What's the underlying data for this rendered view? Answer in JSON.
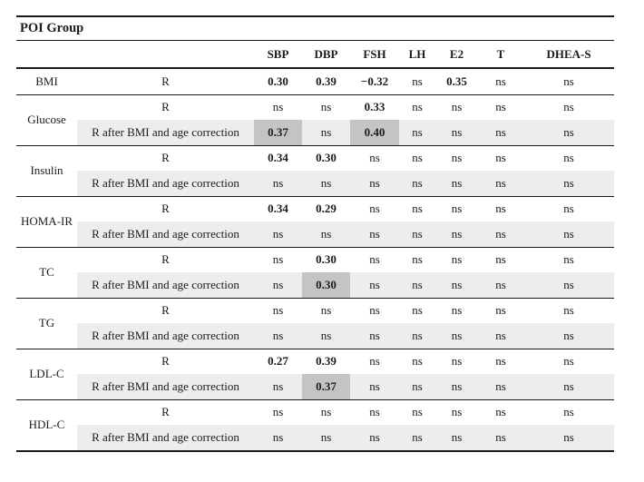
{
  "title": "POI Group",
  "table": {
    "columns": [
      "SBP",
      "DBP",
      "FSH",
      "LH",
      "E2",
      "T",
      "DHEA-S"
    ],
    "row_labels": {
      "r": "R",
      "corrected": "R after BMI and age correction"
    },
    "groups": [
      {
        "param": "BMI",
        "rows": [
          {
            "label": "R",
            "shaded": false,
            "cells": [
              {
                "v": "0.30",
                "bold": true
              },
              {
                "v": "0.39",
                "bold": true
              },
              {
                "v": "−0.32",
                "bold": true
              },
              {
                "v": "ns"
              },
              {
                "v": "0.35",
                "bold": true
              },
              {
                "v": "ns"
              },
              {
                "v": "ns"
              }
            ]
          }
        ]
      },
      {
        "param": "Glucose",
        "rows": [
          {
            "label": "R",
            "shaded": false,
            "cells": [
              {
                "v": "ns"
              },
              {
                "v": "ns"
              },
              {
                "v": "0.33",
                "bold": true
              },
              {
                "v": "ns"
              },
              {
                "v": "ns"
              },
              {
                "v": "ns"
              },
              {
                "v": "ns"
              }
            ]
          },
          {
            "label": "R after BMI and age correction",
            "shaded": true,
            "cells": [
              {
                "v": "0.37",
                "bold": true,
                "highlight": true
              },
              {
                "v": "ns"
              },
              {
                "v": "0.40",
                "bold": true,
                "highlight": true
              },
              {
                "v": "ns"
              },
              {
                "v": "ns"
              },
              {
                "v": "ns"
              },
              {
                "v": "ns"
              }
            ]
          }
        ]
      },
      {
        "param": "Insulin",
        "rows": [
          {
            "label": "R",
            "shaded": false,
            "cells": [
              {
                "v": "0.34",
                "bold": true
              },
              {
                "v": "0.30",
                "bold": true
              },
              {
                "v": "ns"
              },
              {
                "v": "ns"
              },
              {
                "v": "ns"
              },
              {
                "v": "ns"
              },
              {
                "v": "ns"
              }
            ]
          },
          {
            "label": "R after BMI and age correction",
            "shaded": true,
            "cells": [
              {
                "v": "ns"
              },
              {
                "v": "ns"
              },
              {
                "v": "ns"
              },
              {
                "v": "ns"
              },
              {
                "v": "ns"
              },
              {
                "v": "ns"
              },
              {
                "v": "ns"
              }
            ]
          }
        ]
      },
      {
        "param": "HOMA-IR",
        "rows": [
          {
            "label": "R",
            "shaded": false,
            "cells": [
              {
                "v": "0.34",
                "bold": true
              },
              {
                "v": "0.29",
                "bold": true
              },
              {
                "v": "ns"
              },
              {
                "v": "ns"
              },
              {
                "v": "ns"
              },
              {
                "v": "ns"
              },
              {
                "v": "ns"
              }
            ]
          },
          {
            "label": "R after BMI and age correction",
            "shaded": true,
            "cells": [
              {
                "v": "ns"
              },
              {
                "v": "ns"
              },
              {
                "v": "ns"
              },
              {
                "v": "ns"
              },
              {
                "v": "ns"
              },
              {
                "v": "ns"
              },
              {
                "v": "ns"
              }
            ]
          }
        ]
      },
      {
        "param": "TC",
        "rows": [
          {
            "label": "R",
            "shaded": false,
            "cells": [
              {
                "v": "ns"
              },
              {
                "v": "0.30",
                "bold": true
              },
              {
                "v": "ns"
              },
              {
                "v": "ns"
              },
              {
                "v": "ns"
              },
              {
                "v": "ns"
              },
              {
                "v": "ns"
              }
            ]
          },
          {
            "label": "R after BMI and age correction",
            "shaded": true,
            "cells": [
              {
                "v": "ns"
              },
              {
                "v": "0.30",
                "bold": true,
                "highlight": true
              },
              {
                "v": "ns"
              },
              {
                "v": "ns"
              },
              {
                "v": "ns"
              },
              {
                "v": "ns"
              },
              {
                "v": "ns"
              }
            ]
          }
        ]
      },
      {
        "param": "TG",
        "rows": [
          {
            "label": "R",
            "shaded": false,
            "cells": [
              {
                "v": "ns"
              },
              {
                "v": "ns"
              },
              {
                "v": "ns"
              },
              {
                "v": "ns"
              },
              {
                "v": "ns"
              },
              {
                "v": "ns"
              },
              {
                "v": "ns"
              }
            ]
          },
          {
            "label": "R after BMI and age correction",
            "shaded": true,
            "cells": [
              {
                "v": "ns"
              },
              {
                "v": "ns"
              },
              {
                "v": "ns"
              },
              {
                "v": "ns"
              },
              {
                "v": "ns"
              },
              {
                "v": "ns"
              },
              {
                "v": "ns"
              }
            ]
          }
        ]
      },
      {
        "param": "LDL-C",
        "rows": [
          {
            "label": "R",
            "shaded": false,
            "cells": [
              {
                "v": "0.27",
                "bold": true
              },
              {
                "v": "0.39",
                "bold": true
              },
              {
                "v": "ns"
              },
              {
                "v": "ns"
              },
              {
                "v": "ns"
              },
              {
                "v": "ns"
              },
              {
                "v": "ns"
              }
            ]
          },
          {
            "label": "R after BMI and age correction",
            "shaded": true,
            "cells": [
              {
                "v": "ns"
              },
              {
                "v": "0.37",
                "bold": true,
                "highlight": true
              },
              {
                "v": "ns"
              },
              {
                "v": "ns"
              },
              {
                "v": "ns"
              },
              {
                "v": "ns"
              },
              {
                "v": "ns"
              }
            ]
          }
        ]
      },
      {
        "param": "HDL-C",
        "rows": [
          {
            "label": "R",
            "shaded": false,
            "cells": [
              {
                "v": "ns"
              },
              {
                "v": "ns"
              },
              {
                "v": "ns"
              },
              {
                "v": "ns"
              },
              {
                "v": "ns"
              },
              {
                "v": "ns"
              },
              {
                "v": "ns"
              }
            ]
          },
          {
            "label": "R after BMI and age correction",
            "shaded": true,
            "cells": [
              {
                "v": "ns"
              },
              {
                "v": "ns"
              },
              {
                "v": "ns"
              },
              {
                "v": "ns"
              },
              {
                "v": "ns"
              },
              {
                "v": "ns"
              },
              {
                "v": "ns"
              }
            ]
          }
        ]
      }
    ]
  },
  "colors": {
    "shaded_row_bg": "#ededed",
    "highlight_cell_bg": "#c4c4c4",
    "rule": "#1a1a1a",
    "text": "#1c1c1c",
    "page_bg": "#ffffff"
  }
}
